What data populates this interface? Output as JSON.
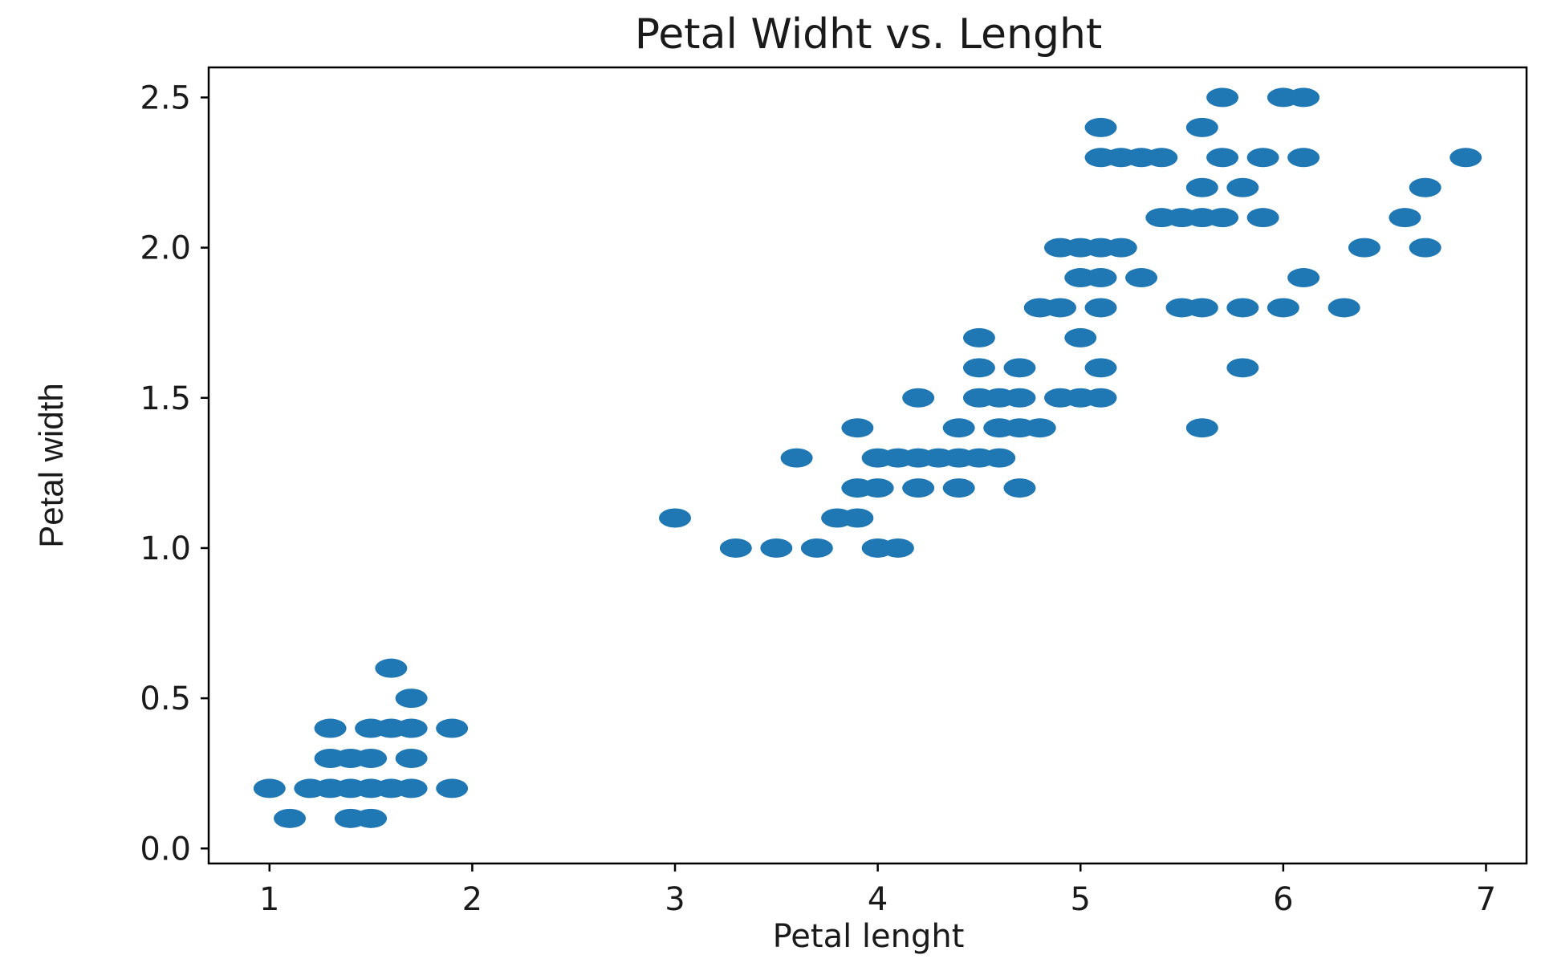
{
  "chart_data": {
    "type": "scatter",
    "title": "Petal Widht vs. Lenght",
    "xlabel": "Petal lenght",
    "ylabel": "Petal width",
    "xlim": [
      0.7,
      7.2
    ],
    "ylim": [
      -0.05,
      2.6
    ],
    "xticks": [
      1,
      2,
      3,
      4,
      5,
      6,
      7
    ],
    "yticks": [
      0.0,
      0.5,
      1.0,
      1.5,
      2.0,
      2.5
    ],
    "xtick_labels": [
      "1",
      "2",
      "3",
      "4",
      "5",
      "6",
      "7"
    ],
    "ytick_labels": [
      "0.0",
      "0.5",
      "1.0",
      "1.5",
      "2.0",
      "2.5"
    ],
    "grid": false,
    "legend": "none",
    "marker_color": "#1f77b4",
    "points": [
      [
        1.0,
        0.2
      ],
      [
        1.1,
        0.1
      ],
      [
        1.2,
        0.2
      ],
      [
        1.3,
        0.2
      ],
      [
        1.3,
        0.3
      ],
      [
        1.3,
        0.4
      ],
      [
        1.4,
        0.1
      ],
      [
        1.4,
        0.2
      ],
      [
        1.4,
        0.3
      ],
      [
        1.5,
        0.1
      ],
      [
        1.5,
        0.2
      ],
      [
        1.5,
        0.3
      ],
      [
        1.5,
        0.4
      ],
      [
        1.6,
        0.2
      ],
      [
        1.6,
        0.4
      ],
      [
        1.6,
        0.6
      ],
      [
        1.7,
        0.2
      ],
      [
        1.7,
        0.3
      ],
      [
        1.7,
        0.4
      ],
      [
        1.7,
        0.5
      ],
      [
        1.9,
        0.2
      ],
      [
        1.9,
        0.4
      ],
      [
        3.0,
        1.1
      ],
      [
        3.3,
        1.0
      ],
      [
        3.5,
        1.0
      ],
      [
        3.6,
        1.3
      ],
      [
        3.7,
        1.0
      ],
      [
        3.8,
        1.1
      ],
      [
        3.9,
        1.1
      ],
      [
        3.9,
        1.2
      ],
      [
        3.9,
        1.4
      ],
      [
        4.0,
        1.0
      ],
      [
        4.0,
        1.2
      ],
      [
        4.0,
        1.3
      ],
      [
        4.1,
        1.0
      ],
      [
        4.1,
        1.3
      ],
      [
        4.2,
        1.2
      ],
      [
        4.2,
        1.3
      ],
      [
        4.2,
        1.5
      ],
      [
        4.3,
        1.3
      ],
      [
        4.4,
        1.2
      ],
      [
        4.4,
        1.3
      ],
      [
        4.4,
        1.4
      ],
      [
        4.5,
        1.3
      ],
      [
        4.5,
        1.5
      ],
      [
        4.5,
        1.6
      ],
      [
        4.5,
        1.7
      ],
      [
        4.6,
        1.3
      ],
      [
        4.6,
        1.4
      ],
      [
        4.6,
        1.5
      ],
      [
        4.7,
        1.2
      ],
      [
        4.7,
        1.4
      ],
      [
        4.7,
        1.5
      ],
      [
        4.7,
        1.6
      ],
      [
        4.8,
        1.4
      ],
      [
        4.8,
        1.8
      ],
      [
        4.9,
        1.5
      ],
      [
        4.9,
        1.8
      ],
      [
        4.9,
        2.0
      ],
      [
        5.0,
        1.5
      ],
      [
        5.0,
        1.7
      ],
      [
        5.0,
        1.9
      ],
      [
        5.0,
        2.0
      ],
      [
        5.1,
        1.5
      ],
      [
        5.1,
        1.6
      ],
      [
        5.1,
        1.8
      ],
      [
        5.1,
        1.9
      ],
      [
        5.1,
        2.0
      ],
      [
        5.1,
        2.3
      ],
      [
        5.1,
        2.4
      ],
      [
        5.2,
        2.0
      ],
      [
        5.2,
        2.3
      ],
      [
        5.3,
        1.9
      ],
      [
        5.3,
        2.3
      ],
      [
        5.4,
        2.1
      ],
      [
        5.4,
        2.3
      ],
      [
        5.5,
        1.8
      ],
      [
        5.5,
        2.1
      ],
      [
        5.6,
        1.4
      ],
      [
        5.6,
        1.8
      ],
      [
        5.6,
        2.1
      ],
      [
        5.6,
        2.2
      ],
      [
        5.6,
        2.4
      ],
      [
        5.7,
        2.1
      ],
      [
        5.7,
        2.3
      ],
      [
        5.7,
        2.5
      ],
      [
        5.8,
        1.6
      ],
      [
        5.8,
        1.8
      ],
      [
        5.8,
        2.2
      ],
      [
        5.9,
        2.1
      ],
      [
        5.9,
        2.3
      ],
      [
        6.0,
        1.8
      ],
      [
        6.0,
        2.5
      ],
      [
        6.1,
        1.9
      ],
      [
        6.1,
        2.3
      ],
      [
        6.1,
        2.5
      ],
      [
        6.3,
        1.8
      ],
      [
        6.4,
        2.0
      ],
      [
        6.6,
        2.1
      ],
      [
        6.7,
        2.0
      ],
      [
        6.7,
        2.2
      ],
      [
        6.9,
        2.3
      ]
    ]
  }
}
